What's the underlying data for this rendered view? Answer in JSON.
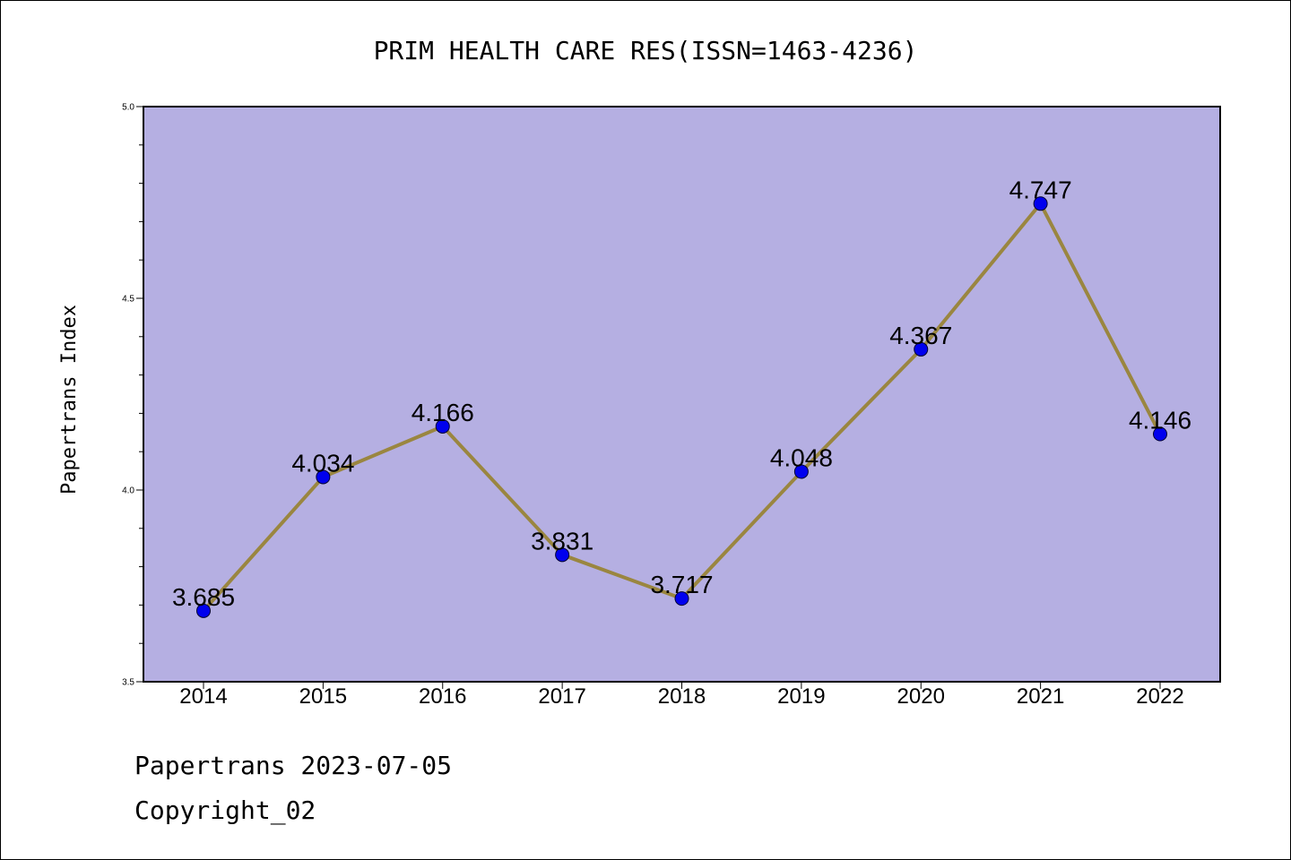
{
  "chart_data": {
    "type": "line",
    "title": "PRIM HEALTH CARE RES(ISSN=1463-4236)",
    "ylabel": "Papertrans Index",
    "xlabel": "",
    "categories": [
      "2014",
      "2015",
      "2016",
      "2017",
      "2018",
      "2019",
      "2020",
      "2021",
      "2022"
    ],
    "series": [
      {
        "values": [
          3.685,
          4.034,
          4.166,
          3.831,
          3.717,
          4.048,
          4.367,
          4.747,
          4.146
        ]
      }
    ],
    "data_labels": [
      "3.685",
      "4.034",
      "4.166",
      "3.831",
      "3.717",
      "4.048",
      "4.367",
      "4.747",
      "4.146"
    ],
    "ylim": [
      3.5,
      5.0
    ],
    "y_ticks": [
      "3.5",
      "4.0",
      "4.5",
      "5.0"
    ],
    "grid": false,
    "colors": {
      "plot_background": "#b5afe2",
      "line": "#9a8640",
      "marker": "#0000ee"
    }
  },
  "footer": {
    "line1": "Papertrans 2023-07-05",
    "line2": "Copyright_02"
  }
}
